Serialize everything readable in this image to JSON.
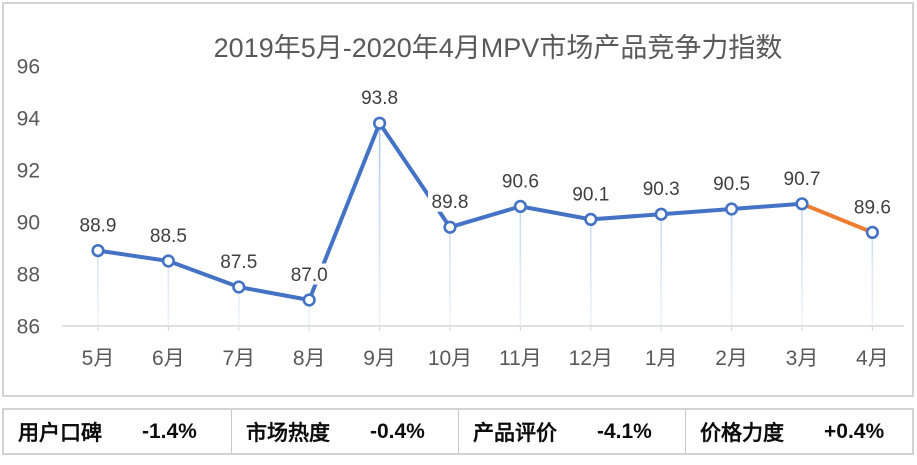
{
  "chart_data": {
    "type": "line",
    "title": "2019年5月-2020年4月MPV市场产品竞争力指数",
    "categories": [
      "5月",
      "6月",
      "7月",
      "8月",
      "9月",
      "10月",
      "11月",
      "12月",
      "1月",
      "2月",
      "3月",
      "4月"
    ],
    "series": [
      {
        "name": "MPV市场产品竞争力指数",
        "values": [
          88.9,
          88.5,
          87.5,
          87.0,
          93.8,
          89.8,
          90.6,
          90.1,
          90.3,
          90.5,
          90.7,
          89.6
        ]
      }
    ],
    "data_labels": [
      "88.9",
      "88.5",
      "87.5",
      "87.0",
      "93.8",
      "89.8",
      "90.6",
      "90.1",
      "90.3",
      "90.5",
      "90.7",
      "89.6"
    ],
    "yticks": [
      86,
      88,
      90,
      92,
      94,
      96
    ],
    "ylim": [
      86,
      96
    ],
    "xlabel": "",
    "ylabel": "",
    "grid": false,
    "legend_position": "none",
    "colors": {
      "line": "#4472C4",
      "last_segment": "#ED7D31",
      "marker_fill": "#FFFFFF",
      "marker_stroke": "#4472C4",
      "drop_line": "#A6C1E9",
      "axis_line": "#D6D6D6",
      "title_text": "#595959",
      "axis_text": "#595959",
      "label_text": "#3F3F3F"
    }
  },
  "stats": {
    "items": [
      {
        "label": "用户口碑",
        "value": "-1.4%"
      },
      {
        "label": "市场热度",
        "value": "-0.4%"
      },
      {
        "label": "产品评价",
        "value": "-4.1%"
      },
      {
        "label": "价格力度",
        "value": "+0.4%"
      }
    ]
  }
}
